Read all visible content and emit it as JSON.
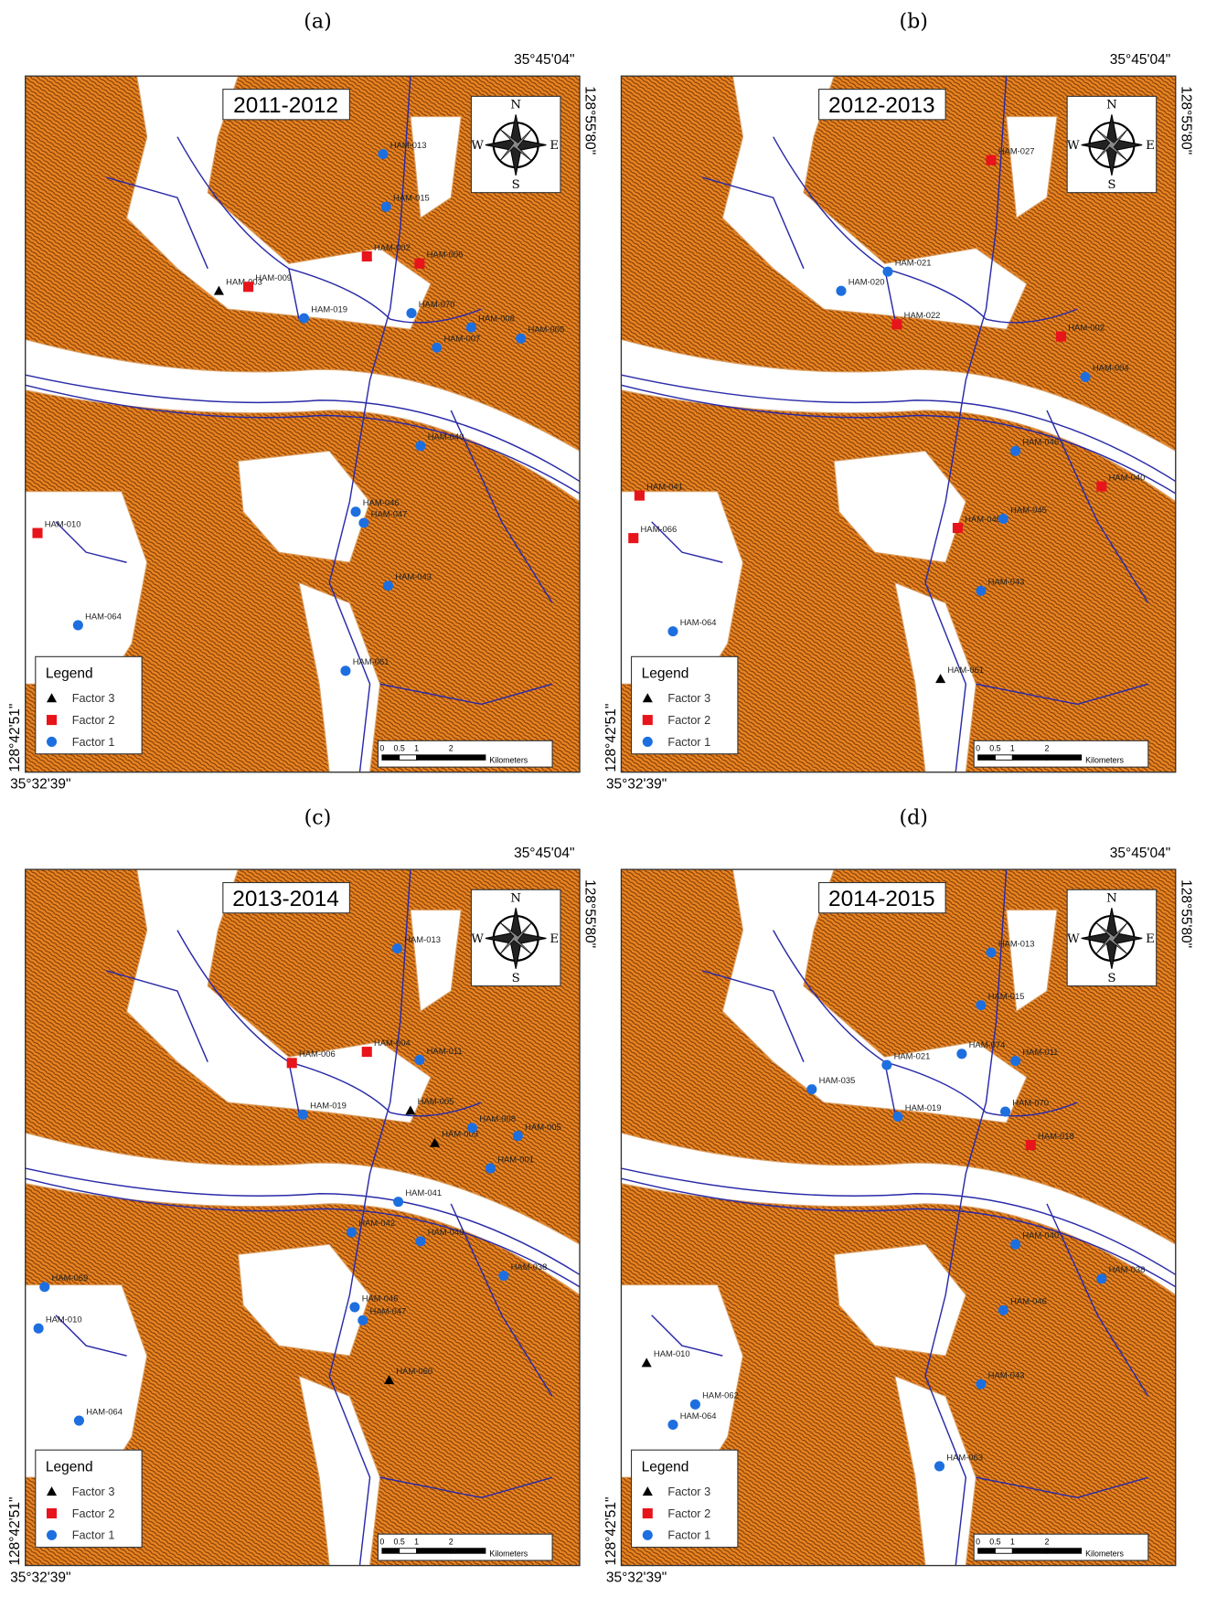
{
  "shared": {
    "coordinates": {
      "top": "35°45'04\"",
      "right": "128°55'80\"",
      "left": "128°42'51\"",
      "bottom": "35°32'39\""
    },
    "compass": {
      "n": "N",
      "s": "S",
      "e": "E",
      "w": "W"
    },
    "legend_title": "Legend",
    "scale": {
      "ticks": [
        "0",
        "0.5",
        "1",
        "2"
      ],
      "unit": "Kilometers"
    }
  },
  "panels": [
    {
      "label": "(a)",
      "period": "2011-2012",
      "legend": [
        {
          "label": "Factor 3",
          "stations": [
            "HAM-003"
          ]
        },
        {
          "label": "Factor 2",
          "stations": [
            "HAM-009",
            "HAM-002",
            "HAM-006",
            "HAM-010"
          ]
        },
        {
          "label": "Factor 1",
          "stations": [
            "HAM-013",
            "HAM-015",
            "HAM-019",
            "HAM-070",
            "HAM-007",
            "HAM-008",
            "HAM-005",
            "HAM-040",
            "HAM-046",
            "HAM-047",
            "HAM-043",
            "HAM-064",
            "HAM-061"
          ]
        }
      ]
    },
    {
      "label": "(b)",
      "period": "2012-2013",
      "legend": [
        {
          "label": "Factor 3",
          "stations": [
            "HAM-061"
          ]
        },
        {
          "label": "Factor 2",
          "stations": [
            "HAM-027",
            "HAM-022",
            "HAM-002",
            "HAM-040",
            "HAM-041",
            "HAM-066",
            "HAM-048"
          ]
        },
        {
          "label": "Factor 1",
          "stations": [
            "HAM-021",
            "HAM-020",
            "HAM-004",
            "HAM-046",
            "HAM-045",
            "HAM-043",
            "HAM-064"
          ]
        }
      ]
    },
    {
      "label": "(c)",
      "period": "2013-2014",
      "legend": [
        {
          "label": "Factor 3",
          "stations": [
            "HAM-005",
            "HAM-009",
            "HAM-060"
          ]
        },
        {
          "label": "Factor 2",
          "stations": [
            "HAM-006",
            "HAM-004"
          ]
        },
        {
          "label": "Factor 1",
          "stations": [
            "HAM-013",
            "HAM-011",
            "HAM-019",
            "HAM-008",
            "HAM-005",
            "HAM-001",
            "HAM-041",
            "HAM-042",
            "HAM-040",
            "HAM-038",
            "HAM-069",
            "HAM-010",
            "HAM-046",
            "HAM-047",
            "HAM-064"
          ]
        }
      ]
    },
    {
      "label": "(d)",
      "period": "2014-2015",
      "legend": [
        {
          "label": "Factor 3",
          "stations": [
            "HAM-010"
          ]
        },
        {
          "label": "Factor 2",
          "stations": [
            "HAM-018"
          ]
        },
        {
          "label": "Factor 1",
          "stations": [
            "HAM-013",
            "HAM-015",
            "HAM-074",
            "HAM-021",
            "HAM-011",
            "HAM-035",
            "HAM-019",
            "HAM-070",
            "HAM-040",
            "HAM-038",
            "HAM-046",
            "HAM-043",
            "HAM-062",
            "HAM-064",
            "HAM-063"
          ]
        }
      ]
    }
  ]
}
